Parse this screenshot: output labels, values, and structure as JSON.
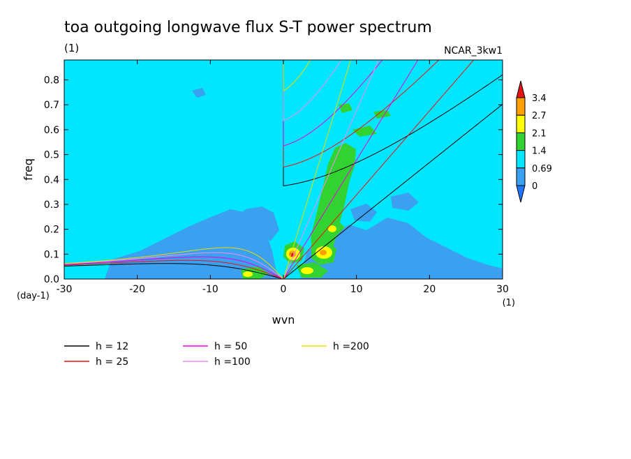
{
  "chart_data": {
    "type": "heatmap",
    "title": "toa outgoing longwave flux S-T power spectrum",
    "subtitle_left": "(1)",
    "subtitle_right": "NCAR_3kw1",
    "xlabel": "wvn",
    "ylabel": "freq",
    "x_units": "(1)",
    "y_units": "(day-1)",
    "xlim": [
      -30,
      30
    ],
    "ylim": [
      0,
      0.88
    ],
    "x_ticks": [
      -30,
      -20,
      -10,
      0,
      10,
      20,
      30
    ],
    "y_ticks": [
      0.0,
      0.1,
      0.2,
      0.3,
      0.4,
      0.5,
      0.6,
      0.7,
      0.8
    ],
    "x_tick_labels": [
      "-30",
      "-20",
      "-10",
      "0",
      "10",
      "20",
      "30"
    ],
    "y_tick_labels": [
      "0.0",
      "0.1",
      "0.2",
      "0.3",
      "0.4",
      "0.5",
      "0.6",
      "0.7",
      "0.8"
    ],
    "colorbar": {
      "levels": [
        "0",
        "0.69",
        "1.4",
        "2.1",
        "2.7",
        "3.4"
      ],
      "colors": [
        "#1e78ff",
        "#3ca0f0",
        "#00e6ff",
        "#32d232",
        "#ffff00",
        "#ffa000",
        "#e61414"
      ]
    },
    "dispersion_curves": [
      {
        "label": "h = 12",
        "equivalent_depth_m": 12,
        "color": "#000000"
      },
      {
        "label": "h = 25",
        "equivalent_depth_m": 25,
        "color": "#e61414"
      },
      {
        "label": "h = 50",
        "equivalent_depth_m": 50,
        "color": "#e600e6"
      },
      {
        "label": "h =100",
        "equivalent_depth_m": 100,
        "color": "#f08cf0"
      },
      {
        "label": "h =200",
        "equivalent_depth_m": 200,
        "color": "#e6dc00"
      }
    ],
    "grid": false,
    "legend_position": "bottom-left"
  }
}
